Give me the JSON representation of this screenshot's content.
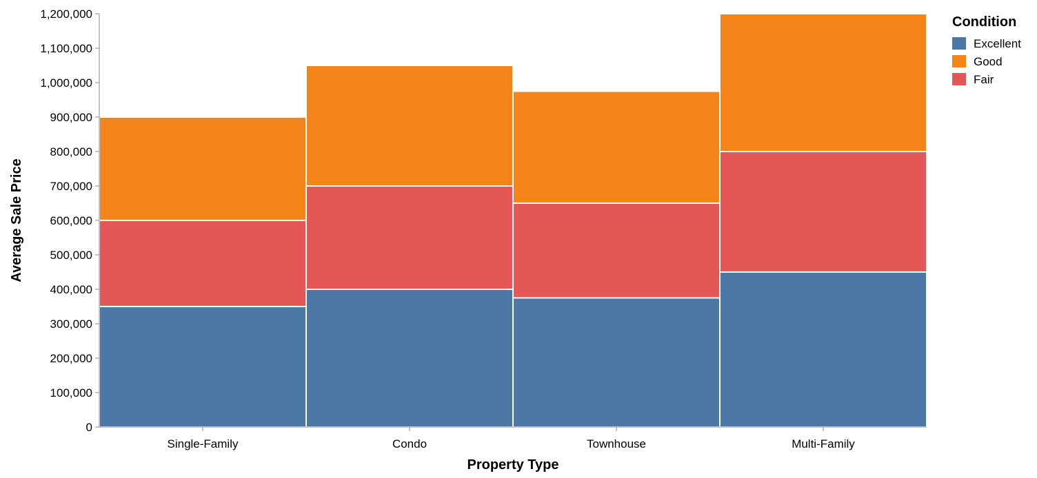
{
  "chart_data": {
    "type": "bar",
    "stacked": true,
    "title": "",
    "xlabel": "Property Type",
    "ylabel": "Average Sale Price",
    "categories": [
      "Single-Family",
      "Condo",
      "Townhouse",
      "Multi-Family"
    ],
    "ylim": [
      0,
      1200000
    ],
    "yticks": [
      0,
      100000,
      200000,
      300000,
      400000,
      500000,
      600000,
      700000,
      800000,
      900000,
      1000000,
      1100000,
      1200000
    ],
    "ytick_labels": [
      "0",
      "100,000",
      "200,000",
      "300,000",
      "400,000",
      "500,000",
      "600,000",
      "700,000",
      "800,000",
      "900,000",
      "1,000,000",
      "1,100,000",
      "1,200,000"
    ],
    "stack_order": [
      "Excellent",
      "Fair",
      "Good"
    ],
    "series": [
      {
        "name": "Excellent",
        "color": "#4c78a8",
        "values": [
          350000,
          400000,
          375000,
          450000
        ]
      },
      {
        "name": "Good",
        "color": "#f58518",
        "values": [
          300000,
          350000,
          325000,
          400000
        ]
      },
      {
        "name": "Fair",
        "color": "#e45756",
        "values": [
          250000,
          300000,
          275000,
          350000
        ]
      }
    ],
    "legend": {
      "title": "Condition",
      "position": "top-right",
      "entries": [
        "Excellent",
        "Good",
        "Fair"
      ]
    },
    "grid": false
  }
}
